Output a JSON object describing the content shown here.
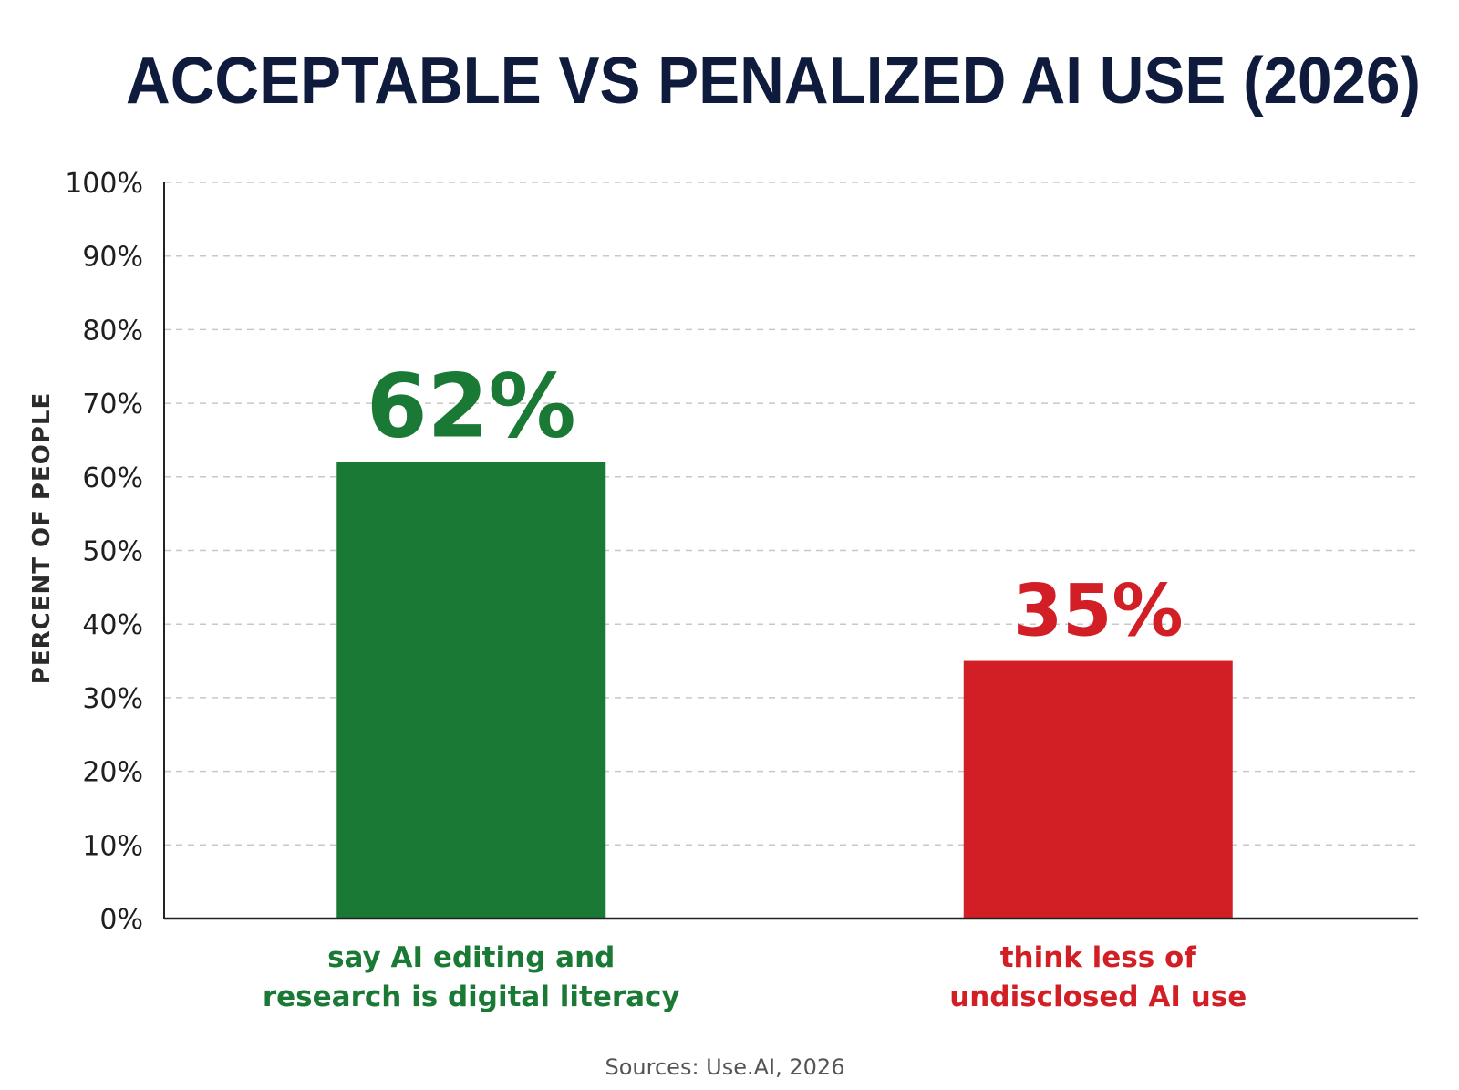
{
  "chart_data": {
    "type": "bar",
    "title": "ACCEPTABLE VS PENALIZED AI USE (2026)",
    "ylabel": "PERCENT OF PEOPLE",
    "xlabel": "",
    "ylim": [
      0,
      100
    ],
    "yticks": [
      "0%",
      "10%",
      "20%",
      "30%",
      "40%",
      "50%",
      "60%",
      "70%",
      "80%",
      "90%",
      "100%"
    ],
    "grid": true,
    "categories": [
      [
        "say AI editing and",
        "research is digital literacy"
      ],
      [
        "think less of",
        "undisclosed AI use"
      ]
    ],
    "values": [
      62,
      35
    ],
    "data_labels": [
      "62%",
      "35%"
    ],
    "colors": [
      "#1a7a35",
      "#d21f26"
    ],
    "source": "Sources: Use.AI, 2026"
  }
}
